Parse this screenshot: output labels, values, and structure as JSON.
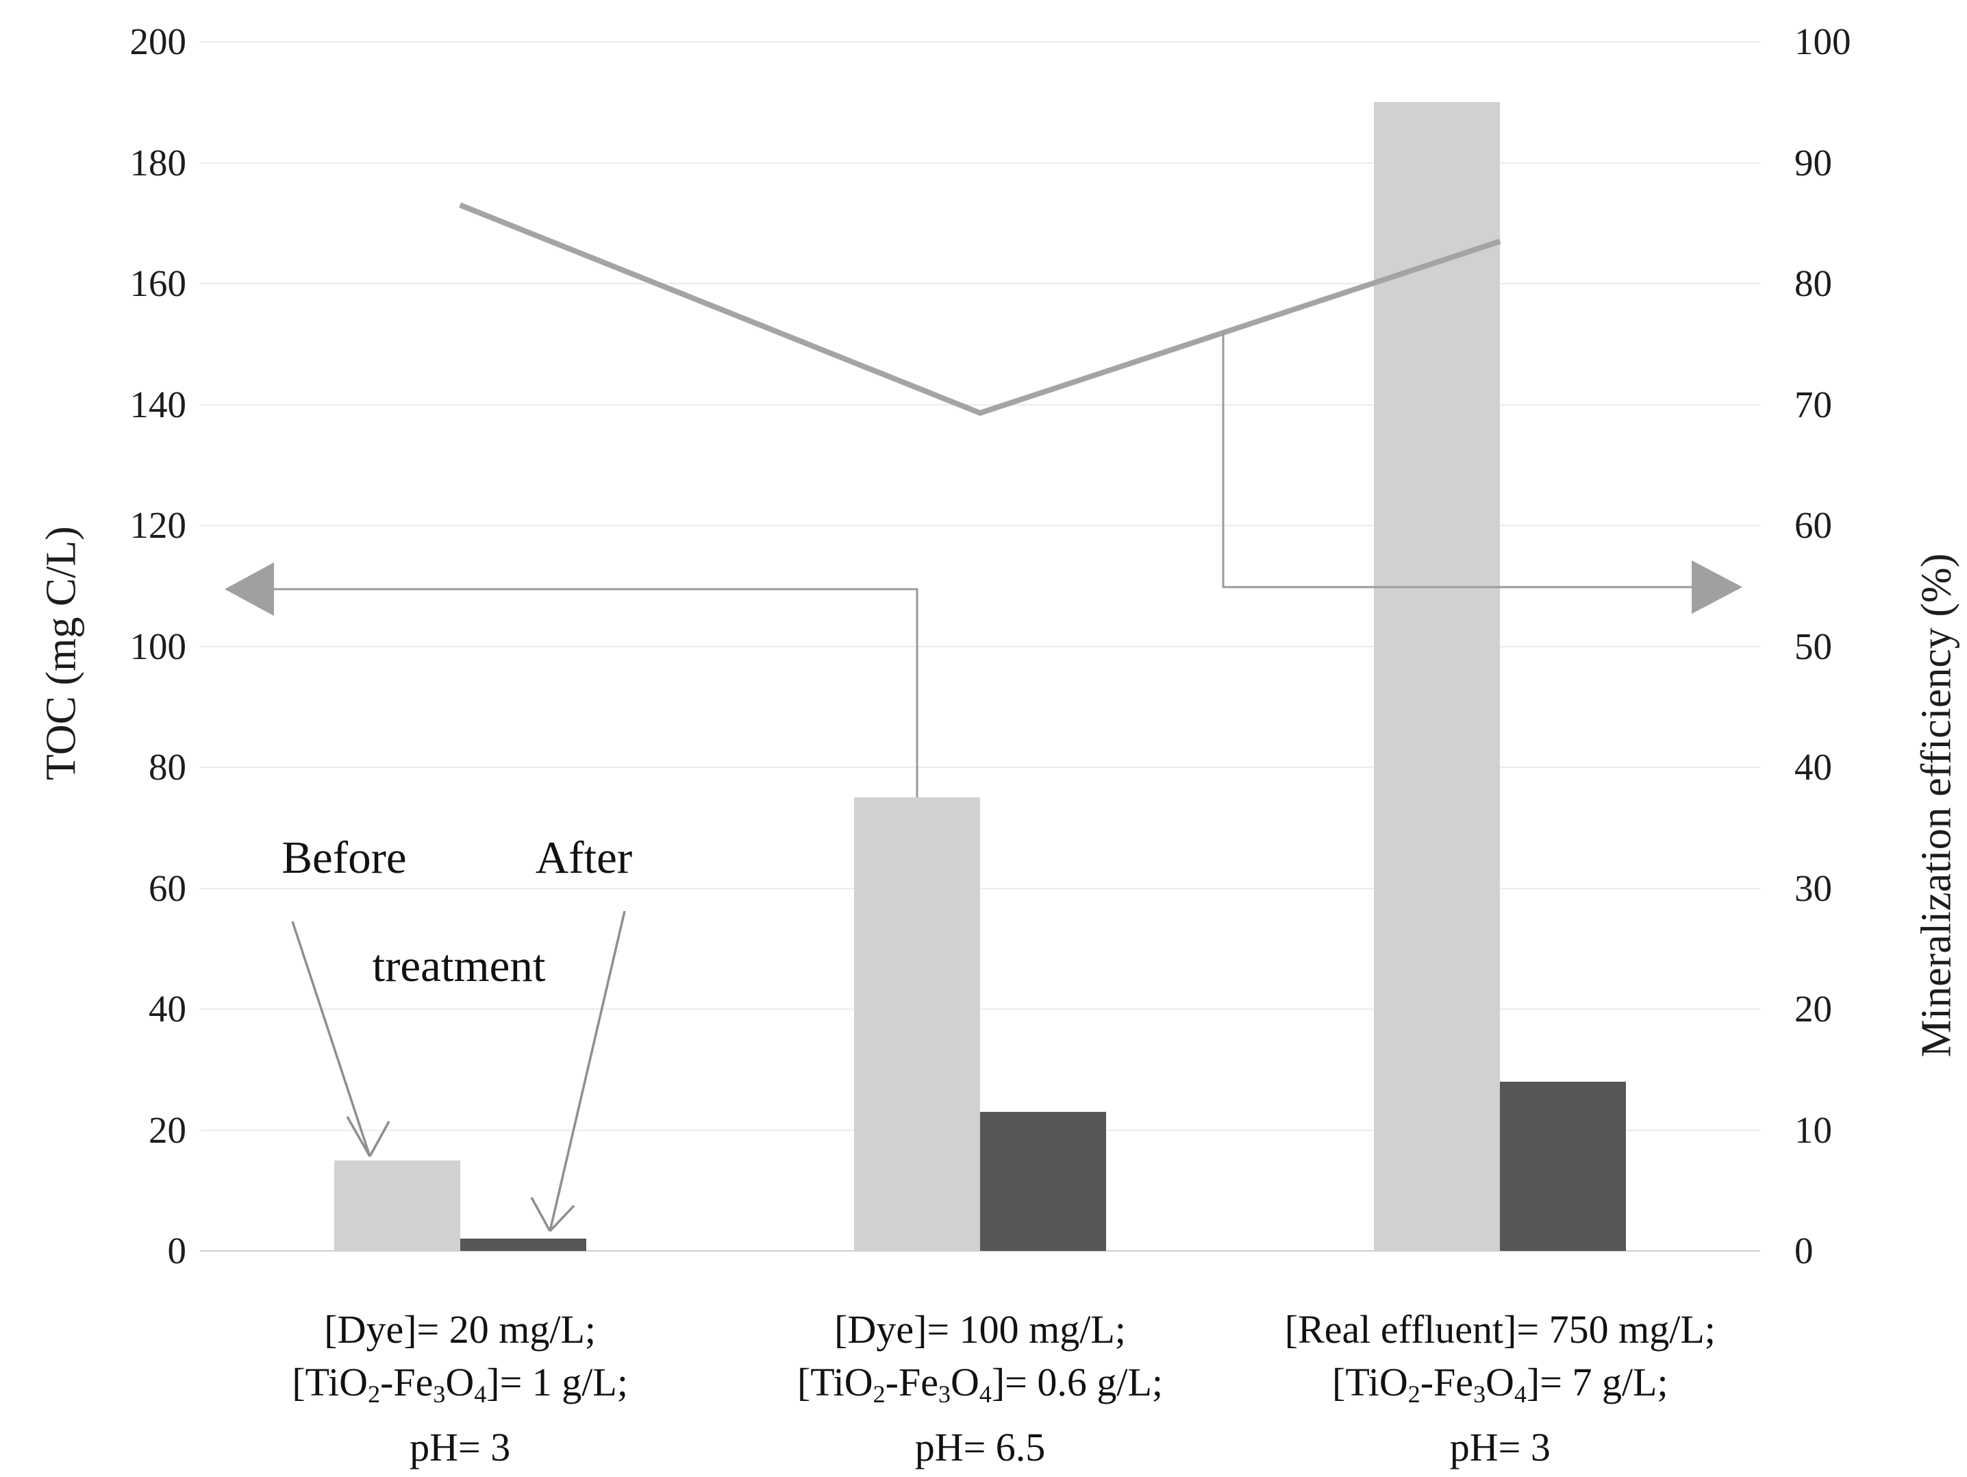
{
  "chart_data": {
    "type": "bar+line",
    "title": "",
    "grid": "horizontal",
    "left_axis": {
      "label": "TOC (mg C/L)",
      "min": 0,
      "max": 200,
      "step": 20,
      "ticks": [
        "200",
        "180",
        "160",
        "140",
        "120",
        "100",
        "80",
        "60",
        "40",
        "20",
        "0"
      ]
    },
    "right_axis": {
      "label": "Mineralization efficiency (%)",
      "min": 0,
      "max": 100,
      "step": 10,
      "ticks": [
        "100",
        "90",
        "80",
        "70",
        "60",
        "50",
        "40",
        "30",
        "20",
        "10",
        "0"
      ]
    },
    "categories": [
      {
        "lines": [
          [
            {
              "text": "[Dye]= 20 mg/L;"
            }
          ],
          [
            {
              "text": "[TiO"
            },
            {
              "text": "2",
              "sub": true
            },
            {
              "text": "-Fe"
            },
            {
              "text": "3",
              "sub": true
            },
            {
              "text": "O"
            },
            {
              "text": "4",
              "sub": true
            },
            {
              "text": "]= 1 g/L;"
            }
          ],
          [
            {
              "text": "pH= 3"
            }
          ]
        ]
      },
      {
        "lines": [
          [
            {
              "text": "[Dye]= 100 mg/L;"
            }
          ],
          [
            {
              "text": "[TiO"
            },
            {
              "text": "2",
              "sub": true
            },
            {
              "text": "-Fe"
            },
            {
              "text": "3",
              "sub": true
            },
            {
              "text": "O"
            },
            {
              "text": "4",
              "sub": true
            },
            {
              "text": "]= 0.6 g/L;"
            }
          ],
          [
            {
              "text": "pH= 6.5"
            }
          ]
        ]
      },
      {
        "lines": [
          [
            {
              "text": "[Real effluent]= 750 mg/L;"
            }
          ],
          [
            {
              "text": "[TiO"
            },
            {
              "text": "2",
              "sub": true
            },
            {
              "text": "-Fe"
            },
            {
              "text": "3",
              "sub": true
            },
            {
              "text": "O"
            },
            {
              "text": "4",
              "sub": true
            },
            {
              "text": "]= 7 g/L;"
            }
          ],
          [
            {
              "text": "pH= 3"
            }
          ]
        ]
      }
    ],
    "series": [
      {
        "name": "TOC before treatment",
        "type": "bar",
        "axis": "left",
        "color": "#d2d0d0",
        "values": [
          15,
          75,
          190
        ]
      },
      {
        "name": "TOC after treatment",
        "type": "bar",
        "axis": "left",
        "color": "#575555",
        "values": [
          2,
          23,
          28
        ]
      },
      {
        "name": "Mineralization efficiency",
        "type": "line",
        "axis": "right",
        "color": "#a5a3a3",
        "values": [
          86.5,
          69.3,
          83.5
        ]
      }
    ],
    "annotations": {
      "before_label": "Before",
      "after_label": "After",
      "treatment_label": "treatment",
      "left_axis_arrow": "arrow-pointing-left-to-TOC-axis",
      "right_axis_arrow": "arrow-pointing-right-to-efficiency-axis"
    },
    "colors": {
      "bar_before": "#d2d0d0",
      "bar_after": "#575555",
      "efficiency_line": "#a5a3a3",
      "gridline": "#ebebeb",
      "connector": "#9b9b9b",
      "arrowhead": "#a0a0a0",
      "annotation_arrow": "#8f8f8f",
      "text": "#1c1c1c"
    }
  }
}
